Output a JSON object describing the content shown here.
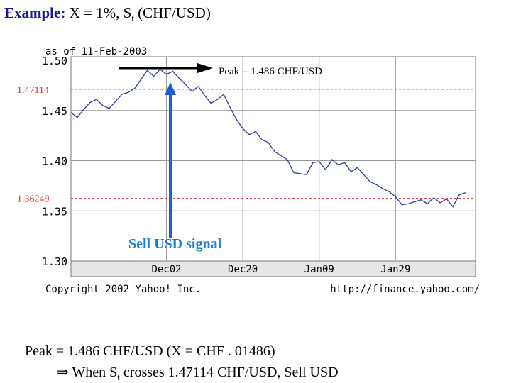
{
  "title": {
    "prefix": "Example:",
    "main": "X = 1%, S",
    "sub": "t",
    "suffix": "(CHF/USD)"
  },
  "chart_data": {
    "type": "line",
    "as_of": "as of 11-Feb-2003",
    "ylim": [
      1.3,
      1.5
    ],
    "y_ticks": [
      {
        "value": 1.5,
        "label": "1.50"
      },
      {
        "value": 1.45,
        "label": "1.45"
      },
      {
        "value": 1.4,
        "label": "1.40"
      },
      {
        "value": 1.35,
        "label": "1.35"
      },
      {
        "value": 1.3,
        "label": "1.30"
      }
    ],
    "x_ticks": [
      {
        "index": 15,
        "label": "Dec02"
      },
      {
        "index": 27,
        "label": "Dec20"
      },
      {
        "index": 39,
        "label": "Jan09"
      },
      {
        "index": 51,
        "label": "Jan29"
      }
    ],
    "n_points": 63,
    "series": [
      {
        "name": "CHF/USD",
        "values": [
          1.448,
          1.443,
          1.451,
          1.458,
          1.461,
          1.455,
          1.452,
          1.459,
          1.466,
          1.468,
          1.472,
          1.481,
          1.49,
          1.484,
          1.491,
          1.486,
          1.489,
          1.482,
          1.476,
          1.469,
          1.474,
          1.465,
          1.457,
          1.461,
          1.466,
          1.453,
          1.441,
          1.432,
          1.426,
          1.429,
          1.421,
          1.418,
          1.409,
          1.405,
          1.401,
          1.388,
          1.387,
          1.386,
          1.398,
          1.399,
          1.391,
          1.401,
          1.396,
          1.398,
          1.389,
          1.393,
          1.386,
          1.379,
          1.376,
          1.372,
          1.369,
          1.364,
          1.356,
          1.357,
          1.359,
          1.361,
          1.357,
          1.363,
          1.358,
          1.362,
          1.354,
          1.366,
          1.368
        ]
      }
    ],
    "reference_lines": [
      {
        "value": 1.47114,
        "label": "1.47114"
      },
      {
        "value": 1.36249,
        "label": "1.36249"
      }
    ],
    "annotations": {
      "peak": "Peak = 1.486 CHF/USD",
      "signal": "Sell USD signal"
    },
    "copyright": "Copyright 2002 Yahoo! Inc.",
    "source": "http://finance.yahoo.com/"
  },
  "footer": {
    "line1": "Peak = 1.486 CHF/USD (X = CHF . 01486)",
    "arrow": "⇒",
    "line2_a": "When S",
    "line2_sub": "t",
    "line2_b": "crosses 1.47114 CHF/USD, Sell USD"
  },
  "colors": {
    "line": "#2b3d9c",
    "reference": "#cc3333",
    "signal_arrow": "#1e5fd8",
    "signal_text": "#1f78c8",
    "title_keyword": "#1a1a8c"
  }
}
